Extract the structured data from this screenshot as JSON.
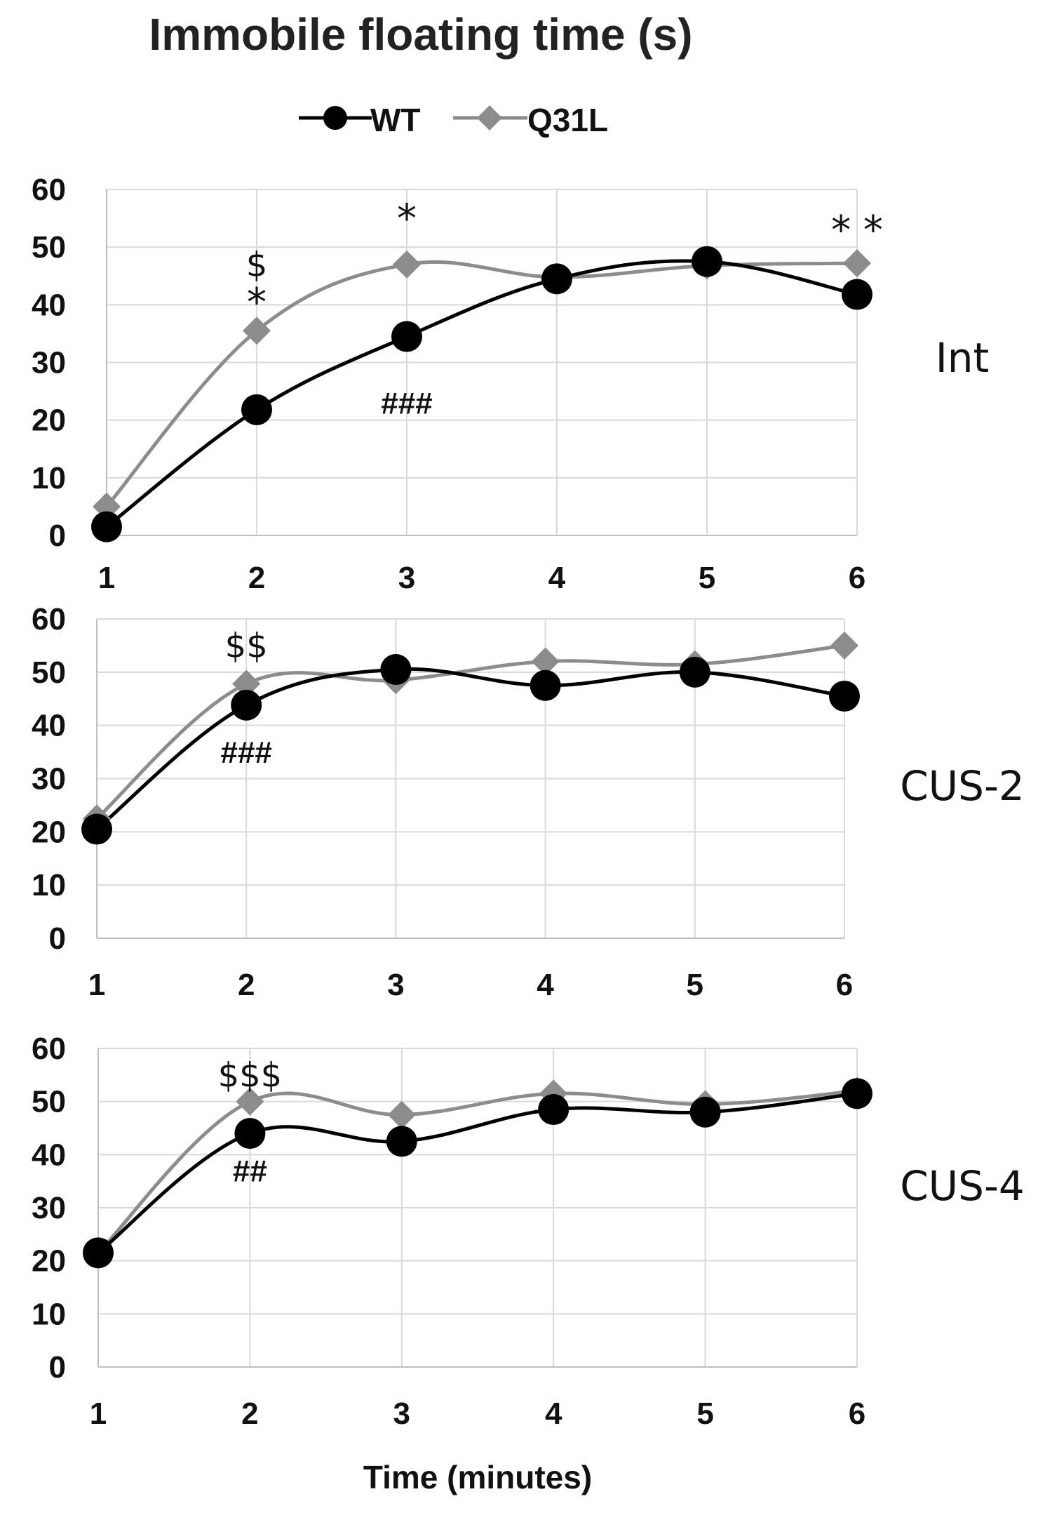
{
  "title": "Immobile floating time (s)",
  "legend": [
    {
      "name": "WT",
      "color": "#000000",
      "marker": "circle"
    },
    {
      "name": "Q31L",
      "color": "#8c8c8c",
      "marker": "diamond"
    }
  ],
  "xlabel": "Time (minutes)",
  "chart_data": [
    {
      "type": "line",
      "panel_label": "Int",
      "x": [
        1,
        2,
        3,
        4,
        5,
        6
      ],
      "series": [
        {
          "name": "WT",
          "values": [
            1.5,
            21.8,
            34.5,
            44.5,
            47.5,
            41.8
          ]
        },
        {
          "name": "Q31L",
          "values": [
            5,
            35.5,
            47,
            44.8,
            46.8,
            47.2
          ]
        }
      ],
      "ylim": [
        0,
        60
      ],
      "yticks": [
        0,
        10,
        20,
        30,
        40,
        50,
        60
      ],
      "grid": true,
      "annotations": [
        {
          "text": "$",
          "x": 2,
          "value": 47
        },
        {
          "text": "*",
          "x": 2,
          "value": 40.5
        },
        {
          "text": "*",
          "x": 3,
          "value": 55
        },
        {
          "text": "* *",
          "x": 6,
          "value": 53
        },
        {
          "text": "###",
          "x": 3,
          "value": 23
        }
      ]
    },
    {
      "type": "line",
      "panel_label": "CUS-2",
      "x": [
        1,
        2,
        3,
        4,
        5,
        6
      ],
      "series": [
        {
          "name": "WT",
          "values": [
            20.5,
            43.8,
            50.5,
            47.5,
            50,
            45.5
          ]
        },
        {
          "name": "Q31L",
          "values": [
            22.5,
            47.8,
            48.5,
            52,
            51.5,
            55
          ]
        }
      ],
      "ylim": [
        0,
        60
      ],
      "yticks": [
        0,
        10,
        20,
        30,
        40,
        50,
        60
      ],
      "grid": true,
      "annotations": [
        {
          "text": "$$",
          "x": 2,
          "value": 55
        },
        {
          "text": "###",
          "x": 2,
          "value": 35
        }
      ]
    },
    {
      "type": "line",
      "panel_label": "CUS-4",
      "x": [
        1,
        2,
        3,
        4,
        5,
        6
      ],
      "series": [
        {
          "name": "WT",
          "values": [
            21.5,
            44,
            42.5,
            48.5,
            48,
            51.5
          ]
        },
        {
          "name": "Q31L",
          "values": [
            21.5,
            50,
            47.5,
            51.5,
            49.5,
            52
          ]
        }
      ],
      "ylim": [
        0,
        60
      ],
      "yticks": [
        0,
        10,
        20,
        30,
        40,
        50,
        60
      ],
      "grid": true,
      "annotations": [
        {
          "text": "$$$",
          "x": 2,
          "value": 55
        },
        {
          "text": "##",
          "x": 2,
          "value": 37
        }
      ]
    }
  ]
}
